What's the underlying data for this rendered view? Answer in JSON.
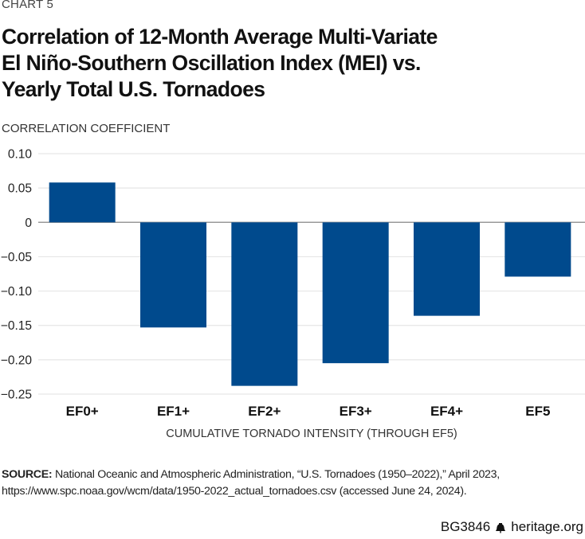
{
  "header": {
    "chart_number": "CHART 5",
    "title_lines": [
      "Correlation of 12-Month Average Multi-Variate",
      "El Niño-Southern Oscillation Index (MEI) vs.",
      "Yearly Total U.S. Tornadoes"
    ]
  },
  "colors": {
    "bar": "#004a8d",
    "gridline": "#e6e6e6",
    "zero_line": "#999999"
  },
  "chart_data": {
    "type": "bar",
    "title": "Correlation of 12-Month Average Multi-Variate El Niño-Southern Oscillation Index (MEI) vs. Yearly Total U.S. Tornadoes",
    "xlabel": "CUMULATIVE TORNADO INTENSITY (THROUGH EF5)",
    "ylabel": "CORRELATION COEFFICIENT",
    "categories": [
      "EF0+",
      "EF1+",
      "EF2+",
      "EF3+",
      "EF4+",
      "EF5"
    ],
    "values": [
      0.058,
      -0.153,
      -0.238,
      -0.205,
      -0.136,
      -0.079
    ],
    "ylim": [
      -0.25,
      0.1
    ],
    "yticks": [
      0.1,
      0.05,
      0,
      -0.05,
      -0.1,
      -0.15,
      -0.2,
      -0.25
    ],
    "ytick_labels": [
      "0.10",
      "0.05",
      "0",
      "−0.05",
      "−0.10",
      "−0.15",
      "−0.20",
      "−0.25"
    ],
    "grid": true,
    "legend": "none"
  },
  "source": {
    "label": "SOURCE:",
    "text_line1": " National Oceanic and Atmospheric Administration, “U.S. Tornadoes (1950–2022),” April 2023,",
    "text_line2": "https://www.spc.noaa.gov/wcm/data/1950-2022_actual_tornadoes.csv (accessed June 24, 2024)."
  },
  "footer": {
    "report_id": "BG3846",
    "icon": "liberty-bell-icon",
    "site": "heritage.org"
  }
}
